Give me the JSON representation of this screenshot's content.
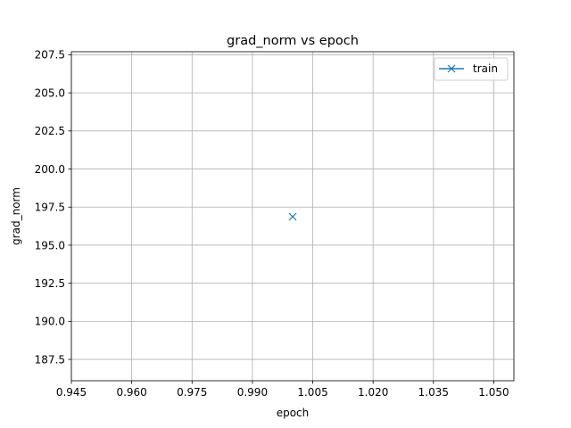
{
  "chart_data": {
    "type": "line",
    "title": "grad_norm vs epoch",
    "xlabel": "epoch",
    "ylabel": "grad_norm",
    "xlim": [
      0.945,
      1.055
    ],
    "ylim": [
      186.1,
      207.7
    ],
    "xticks": [
      0.945,
      0.96,
      0.975,
      0.99,
      1.005,
      1.02,
      1.035,
      1.05
    ],
    "xtick_labels": [
      "0.945",
      "0.960",
      "0.975",
      "0.990",
      "1.005",
      "1.020",
      "1.035",
      "1.050"
    ],
    "yticks": [
      187.5,
      190.0,
      192.5,
      195.0,
      197.5,
      200.0,
      202.5,
      205.0,
      207.5
    ],
    "ytick_labels": [
      "187.5",
      "190.0",
      "192.5",
      "195.0",
      "197.5",
      "200.0",
      "202.5",
      "205.0",
      "207.5"
    ],
    "grid": true,
    "legend_position": "upper right",
    "series": [
      {
        "name": "train",
        "color": "#1f77b4",
        "marker": "x",
        "x": [
          1.0
        ],
        "y": [
          196.87
        ]
      }
    ]
  }
}
